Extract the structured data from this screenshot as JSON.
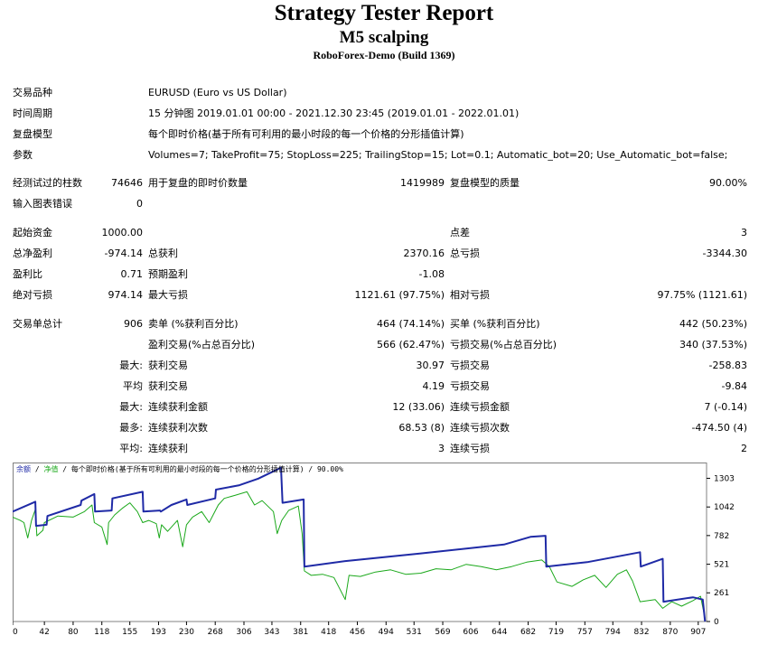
{
  "header": {
    "title": "Strategy Tester Report",
    "subtitle": "M5 scalping",
    "server": "RoboForex-Demo (Build 1369)"
  },
  "settings": {
    "symbol_label": "交易品种",
    "symbol_value": "EURUSD (Euro vs US Dollar)",
    "period_label": "时间周期",
    "period_value": "15 分钟图 2019.01.01 00:00 - 2021.12.30 23:45 (2019.01.01 - 2022.01.01)",
    "model_label": "复盘模型",
    "model_value": "每个即时价格(基于所有可利用的最小时段的每一个价格的分形插值计算)",
    "params_label": "参数",
    "params_value": "Volumes=7; TakeProfit=75; StopLoss=225; TrailingStop=15; Lot=0.1; Automatic_bot=20; Use_Automatic_bot=false;"
  },
  "test": {
    "bars_label": "经测试过的柱数",
    "bars_value": "74646",
    "ticks_label": "用于复盘的即时价数量",
    "ticks_value": "1419989",
    "quality_label": "复盘模型的质量",
    "quality_value": "90.00%",
    "errors_label": "输入图表错误",
    "errors_value": "0"
  },
  "results": {
    "deposit_label": "起始资金",
    "deposit_value": "1000.00",
    "spread_label": "点差",
    "spread_value": "3",
    "net_label": "总净盈利",
    "net_value": "-974.14",
    "gross_profit_label": "总获利",
    "gross_profit_value": "2370.16",
    "gross_loss_label": "总亏损",
    "gross_loss_value": "-3344.30",
    "pf_label": "盈利比",
    "pf_value": "0.71",
    "payoff_label": "预期盈利",
    "payoff_value": "-1.08",
    "abs_dd_label": "绝对亏损",
    "abs_dd_value": "974.14",
    "max_dd_label": "最大亏损",
    "max_dd_value": "1121.61 (97.75%)",
    "rel_dd_label": "相对亏损",
    "rel_dd_value": "97.75% (1121.61)"
  },
  "trades": {
    "total_label": "交易单总计",
    "total_value": "906",
    "short_label": "卖单 (%获利百分比)",
    "short_value": "464 (74.14%)",
    "long_label": "买单 (%获利百分比)",
    "long_value": "442 (50.23%)",
    "win_label": "盈利交易(%占总百分比)",
    "win_value": "566 (62.47%)",
    "loss_label": "亏损交易(%占总百分比)",
    "loss_value": "340 (37.53%)",
    "max_label": "最大:",
    "largest_win_label": "获利交易",
    "largest_win_value": "30.97",
    "largest_loss_label": "亏损交易",
    "largest_loss_value": "-258.83",
    "avg_label": "平均",
    "avg_win_label": "获利交易",
    "avg_win_value": "4.19",
    "avg_loss_label": "亏损交易",
    "avg_loss_value": "-9.84",
    "max2_label": "最大:",
    "max_cons_win_label": "连续获利金额",
    "max_cons_win_value": "12 (33.06)",
    "max_cons_loss_label": "连续亏损金额",
    "max_cons_loss_value": "7 (-0.14)",
    "most_label": "最多:",
    "most_cons_win_label": "连续获利次数",
    "most_cons_win_value": "68.53 (8)",
    "most_cons_loss_label": "连续亏损次数",
    "most_cons_loss_value": "-474.50 (4)",
    "avg2_label": "平均:",
    "avg_cons_win_label": "连续获利",
    "avg_cons_win_value": "3",
    "avg_cons_loss_label": "连续亏损",
    "avg_cons_loss_value": "2"
  },
  "chart_data": {
    "type": "line",
    "legend": {
      "balance": "余额",
      "sep1": " / ",
      "equity": "净值",
      "rest": " / 每个即时价格(基于所有可利用的最小时段的每一个价格的分形插值计算) / 90.00%"
    },
    "x_ticks": [
      "0",
      "42",
      "80",
      "118",
      "155",
      "193",
      "230",
      "268",
      "306",
      "343",
      "381",
      "418",
      "456",
      "494",
      "531",
      "569",
      "606",
      "644",
      "682",
      "719",
      "757",
      "794",
      "832",
      "870",
      "907"
    ],
    "y_ticks": [
      "1303",
      "1042",
      "782",
      "521",
      "261",
      "0"
    ],
    "xlim": [
      0,
      918
    ],
    "ylim": [
      0,
      1430
    ],
    "colors": {
      "balance": "#1f2aa6",
      "equity": "#1aa81a",
      "grid": "#d0d0d0"
    },
    "series": [
      {
        "key": "balance",
        "values": [
          [
            0,
            1000
          ],
          [
            30,
            1090
          ],
          [
            31,
            870
          ],
          [
            45,
            880
          ],
          [
            46,
            960
          ],
          [
            90,
            1060
          ],
          [
            91,
            1100
          ],
          [
            108,
            1160
          ],
          [
            109,
            1000
          ],
          [
            131,
            1010
          ],
          [
            132,
            1120
          ],
          [
            172,
            1180
          ],
          [
            173,
            1000
          ],
          [
            195,
            1010
          ],
          [
            196,
            1000
          ],
          [
            210,
            1060
          ],
          [
            230,
            1110
          ],
          [
            231,
            1060
          ],
          [
            268,
            1120
          ],
          [
            269,
            1200
          ],
          [
            300,
            1240
          ],
          [
            325,
            1300
          ],
          [
            355,
            1400
          ],
          [
            357,
            1080
          ],
          [
            385,
            1110
          ],
          [
            386,
            500
          ],
          [
            440,
            550
          ],
          [
            540,
            620
          ],
          [
            650,
            700
          ],
          [
            685,
            770
          ],
          [
            705,
            780
          ],
          [
            706,
            500
          ],
          [
            760,
            540
          ],
          [
            830,
            630
          ],
          [
            831,
            500
          ],
          [
            860,
            570
          ],
          [
            861,
            180
          ],
          [
            900,
            220
          ],
          [
            913,
            200
          ],
          [
            916,
            0
          ]
        ]
      },
      {
        "key": "equity",
        "values": [
          [
            0,
            950
          ],
          [
            10,
            920
          ],
          [
            15,
            900
          ],
          [
            20,
            760
          ],
          [
            25,
            920
          ],
          [
            30,
            1020
          ],
          [
            32,
            780
          ],
          [
            40,
            830
          ],
          [
            42,
            900
          ],
          [
            60,
            960
          ],
          [
            80,
            950
          ],
          [
            95,
            1000
          ],
          [
            105,
            1060
          ],
          [
            108,
            900
          ],
          [
            118,
            860
          ],
          [
            125,
            700
          ],
          [
            127,
            900
          ],
          [
            135,
            970
          ],
          [
            145,
            1030
          ],
          [
            155,
            1080
          ],
          [
            165,
            1000
          ],
          [
            172,
            900
          ],
          [
            180,
            920
          ],
          [
            190,
            890
          ],
          [
            194,
            760
          ],
          [
            197,
            880
          ],
          [
            205,
            820
          ],
          [
            218,
            920
          ],
          [
            225,
            680
          ],
          [
            230,
            880
          ],
          [
            238,
            950
          ],
          [
            250,
            1000
          ],
          [
            260,
            900
          ],
          [
            272,
            1060
          ],
          [
            280,
            1120
          ],
          [
            295,
            1150
          ],
          [
            310,
            1180
          ],
          [
            320,
            1060
          ],
          [
            330,
            1100
          ],
          [
            345,
            1000
          ],
          [
            350,
            800
          ],
          [
            356,
            920
          ],
          [
            365,
            1010
          ],
          [
            378,
            1050
          ],
          [
            383,
            800
          ],
          [
            386,
            460
          ],
          [
            395,
            420
          ],
          [
            410,
            430
          ],
          [
            425,
            400
          ],
          [
            440,
            200
          ],
          [
            445,
            420
          ],
          [
            460,
            410
          ],
          [
            480,
            450
          ],
          [
            500,
            470
          ],
          [
            520,
            430
          ],
          [
            540,
            440
          ],
          [
            560,
            480
          ],
          [
            580,
            470
          ],
          [
            600,
            520
          ],
          [
            620,
            500
          ],
          [
            640,
            470
          ],
          [
            660,
            500
          ],
          [
            680,
            540
          ],
          [
            700,
            560
          ],
          [
            710,
            500
          ],
          [
            720,
            360
          ],
          [
            740,
            320
          ],
          [
            755,
            380
          ],
          [
            770,
            420
          ],
          [
            785,
            310
          ],
          [
            800,
            430
          ],
          [
            812,
            470
          ],
          [
            820,
            370
          ],
          [
            830,
            180
          ],
          [
            850,
            200
          ],
          [
            860,
            120
          ],
          [
            872,
            180
          ],
          [
            885,
            140
          ],
          [
            900,
            190
          ],
          [
            910,
            230
          ],
          [
            916,
            30
          ]
        ]
      }
    ]
  }
}
